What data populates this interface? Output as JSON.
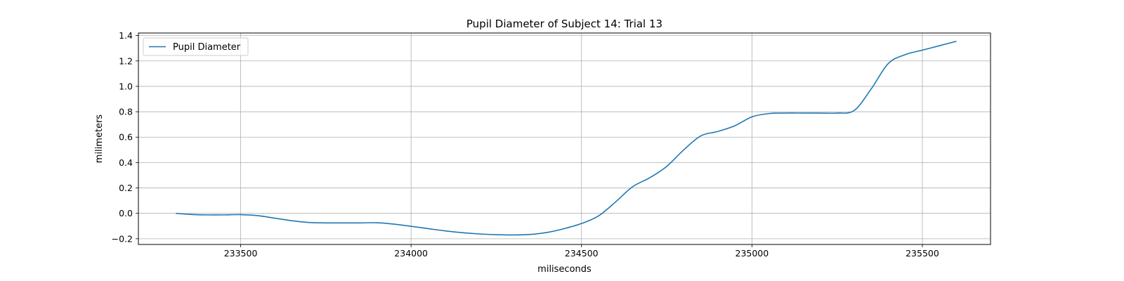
{
  "chart_data": {
    "type": "line",
    "title": "Pupil Diameter of Subject 14: Trial 13",
    "xlabel": "miliseconds",
    "ylabel": "milimeters",
    "xlim": [
      233200,
      235700
    ],
    "ylim": [
      -0.245,
      1.42
    ],
    "xticks": [
      233500,
      234000,
      234500,
      235000,
      235500
    ],
    "yticks": [
      -0.2,
      0.0,
      0.2,
      0.4,
      0.6,
      0.8,
      1.0,
      1.2,
      1.4
    ],
    "yticklabels": [
      "−0.2",
      "0.0",
      "0.2",
      "0.4",
      "0.6",
      "0.8",
      "1.0",
      "1.2",
      "1.4"
    ],
    "grid": true,
    "legend_position": "top-left",
    "series": [
      {
        "name": "Pupil Diameter",
        "color": "#1f77b4",
        "x": [
          233310,
          233350,
          233400,
          233450,
          233500,
          233550,
          233600,
          233650,
          233700,
          233750,
          233800,
          233850,
          233900,
          233950,
          234000,
          234050,
          234100,
          234150,
          234200,
          234250,
          234300,
          234350,
          234400,
          234450,
          234500,
          234550,
          234600,
          234650,
          234700,
          234750,
          234800,
          234850,
          234900,
          234950,
          235000,
          235050,
          235100,
          235150,
          235200,
          235250,
          235300,
          235350,
          235400,
          235450,
          235500,
          235550,
          235600
        ],
        "y": [
          0.0,
          -0.008,
          -0.012,
          -0.012,
          -0.01,
          -0.018,
          -0.038,
          -0.058,
          -0.072,
          -0.075,
          -0.075,
          -0.075,
          -0.074,
          -0.085,
          -0.102,
          -0.12,
          -0.138,
          -0.152,
          -0.162,
          -0.168,
          -0.17,
          -0.166,
          -0.15,
          -0.12,
          -0.08,
          -0.02,
          0.09,
          0.21,
          0.28,
          0.37,
          0.5,
          0.61,
          0.645,
          0.69,
          0.76,
          0.786,
          0.79,
          0.79,
          0.79,
          0.79,
          0.81,
          0.98,
          1.18,
          1.25,
          1.285,
          1.32,
          1.355
        ]
      }
    ]
  }
}
